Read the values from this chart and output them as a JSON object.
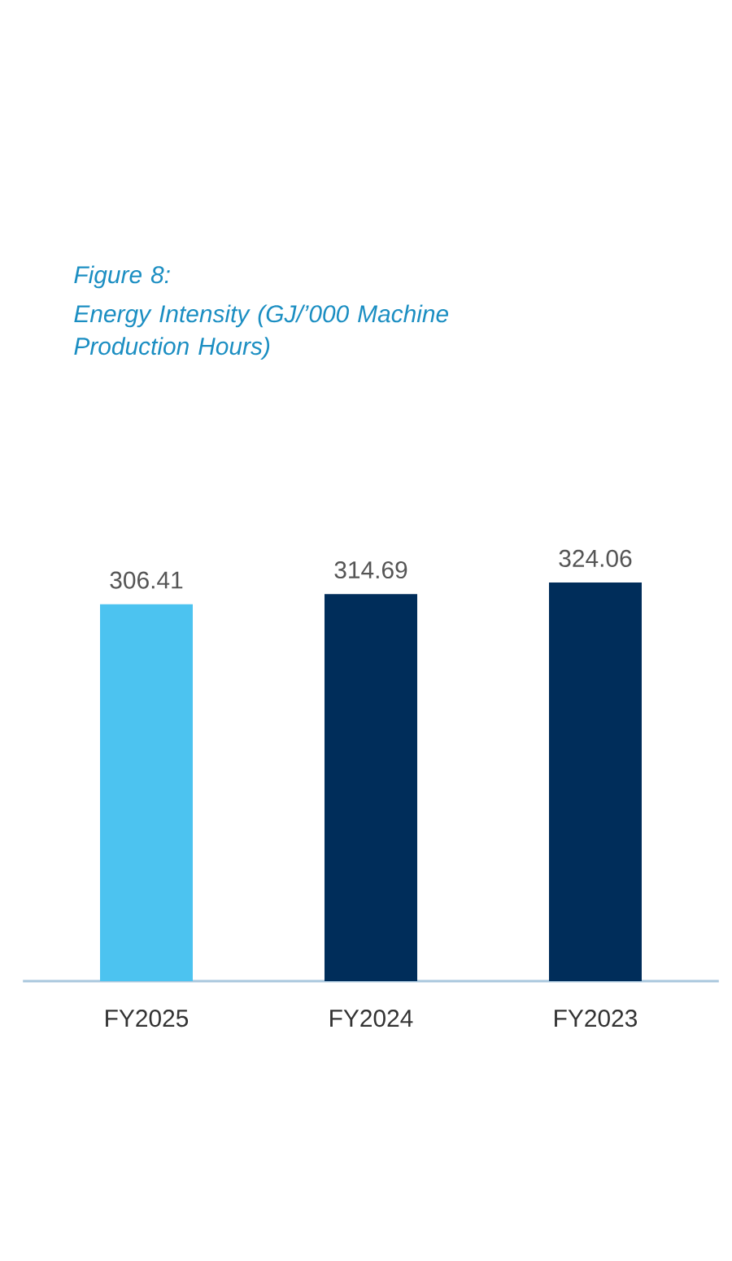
{
  "chart_data": {
    "type": "bar",
    "title": "Figure 8:",
    "subtitle": "Energy Intensity (GJ/’000 Machine Production Hours)",
    "categories": [
      "FY2025",
      "FY2024",
      "FY2023"
    ],
    "values": [
      306.41,
      314.69,
      324.06
    ],
    "colors": [
      "#4cc3f0",
      "#002d5a",
      "#002d5a"
    ],
    "data_labels": true
  }
}
